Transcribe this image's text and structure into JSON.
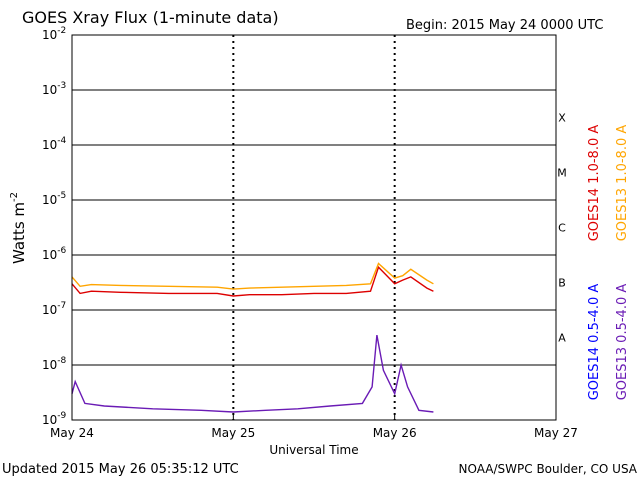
{
  "chart_data": {
    "type": "line",
    "title": "GOES Xray Flux (1-minute data)",
    "begin_label": "Begin:  2015 May 24 0000 UTC",
    "ylabel": "Watts m",
    "ylabel_sup": "-2",
    "xlabel": "Universal Time",
    "y_scale": "log",
    "ylim": [
      1e-09,
      0.01
    ],
    "y_ticks": [
      {
        "base": "10",
        "exp": "-2"
      },
      {
        "base": "10",
        "exp": "-3"
      },
      {
        "base": "10",
        "exp": "-4"
      },
      {
        "base": "10",
        "exp": "-5"
      },
      {
        "base": "10",
        "exp": "-6"
      },
      {
        "base": "10",
        "exp": "-7"
      },
      {
        "base": "10",
        "exp": "-8"
      },
      {
        "base": "10",
        "exp": "-9"
      }
    ],
    "x_ticks": [
      "May 24",
      "May 25",
      "May 26",
      "May 27"
    ],
    "xlim_days": [
      0,
      3
    ],
    "flare_classes": [
      "X",
      "M",
      "C",
      "B",
      "A"
    ],
    "grid": "horizontal at each decade; dotted vertical lines at day boundaries",
    "series": [
      {
        "name": "GOES14 1.0-8.0 A",
        "color": "#dd0000",
        "x_days": [
          0,
          0.05,
          0.12,
          0.3,
          0.6,
          0.9,
          1.0,
          1.1,
          1.3,
          1.5,
          1.7,
          1.85,
          1.9,
          2.0,
          2.05,
          2.1,
          2.2,
          2.24
        ],
        "values": [
          3e-07,
          2e-07,
          2.2e-07,
          2.1e-07,
          2e-07,
          2e-07,
          1.8e-07,
          1.9e-07,
          1.9e-07,
          2e-07,
          2e-07,
          2.2e-07,
          6e-07,
          3e-07,
          3.5e-07,
          4e-07,
          2.5e-07,
          2.2e-07
        ]
      },
      {
        "name": "GOES13 1.0-8.0 A",
        "color": "#ffa500",
        "x_days": [
          0,
          0.05,
          0.12,
          0.3,
          0.6,
          0.9,
          1.0,
          1.1,
          1.3,
          1.5,
          1.7,
          1.85,
          1.9,
          2.0,
          2.05,
          2.1,
          2.2,
          2.24
        ],
        "values": [
          4e-07,
          2.7e-07,
          2.9e-07,
          2.8e-07,
          2.7e-07,
          2.6e-07,
          2.4e-07,
          2.5e-07,
          2.6e-07,
          2.7e-07,
          2.8e-07,
          3e-07,
          7e-07,
          3.8e-07,
          4.2e-07,
          5.5e-07,
          3.5e-07,
          3e-07
        ]
      },
      {
        "name": "GOES14 0.5-4.0 A",
        "color": "#0000ff",
        "x_days": [],
        "values": []
      },
      {
        "name": "GOES13 0.5-4.0 A",
        "color": "#6a1bb5",
        "x_days": [
          0,
          0.02,
          0.08,
          0.2,
          0.5,
          0.8,
          1.0,
          1.2,
          1.4,
          1.6,
          1.8,
          1.86,
          1.89,
          1.93,
          2.0,
          2.04,
          2.08,
          2.15,
          2.24
        ],
        "values": [
          3e-09,
          5e-09,
          2e-09,
          1.8e-09,
          1.6e-09,
          1.5e-09,
          1.4e-09,
          1.5e-09,
          1.6e-09,
          1.8e-09,
          2e-09,
          4e-09,
          3.5e-08,
          8e-09,
          3e-09,
          1e-08,
          4e-09,
          1.5e-09,
          1.4e-09
        ]
      }
    ]
  },
  "footer": {
    "updated": "Updated 2015 May 26 05:35:12 UTC",
    "credit": "NOAA/SWPC Boulder, CO USA"
  }
}
